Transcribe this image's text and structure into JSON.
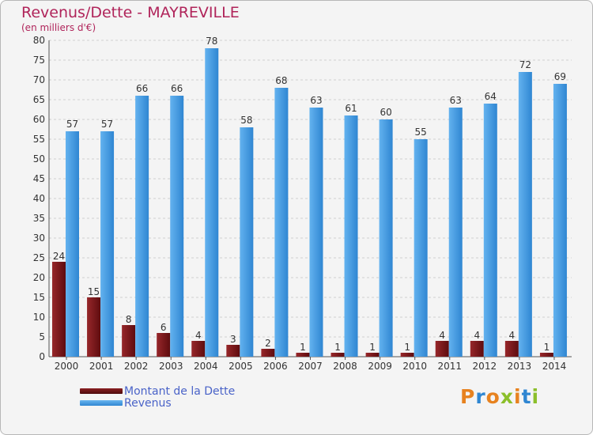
{
  "title": "Revenus/Dette - MAYREVILLE",
  "subtitle": "(en milliers d'€)",
  "logo_text": "Proxiti",
  "colors": {
    "dette": "#7a1416",
    "revenus": "#3a8fdc",
    "title": "#b0245a",
    "legend_text": "#4a63c8"
  },
  "legend": [
    {
      "label": "Montant de la Dette",
      "color": "#7a1416"
    },
    {
      "label": "Revenus",
      "color": "#3a8fdc"
    }
  ],
  "chart_data": {
    "type": "bar",
    "title": "Revenus/Dette - MAYREVILLE",
    "subtitle": "(en milliers d'€)",
    "categories": [
      "2000",
      "2001",
      "2002",
      "2003",
      "2004",
      "2005",
      "2006",
      "2007",
      "2008",
      "2009",
      "2010",
      "2011",
      "2012",
      "2013",
      "2014"
    ],
    "series": [
      {
        "name": "Montant de la Dette",
        "values": [
          24,
          15,
          8,
          6,
          4,
          3,
          2,
          1,
          1,
          1,
          1,
          4,
          4,
          4,
          1
        ]
      },
      {
        "name": "Revenus",
        "values": [
          57,
          57,
          66,
          66,
          78,
          58,
          68,
          63,
          61,
          60,
          55,
          63,
          64,
          72,
          69
        ]
      }
    ],
    "ylim": [
      0,
      80
    ],
    "yticks": [
      0,
      5,
      10,
      15,
      20,
      25,
      30,
      35,
      40,
      45,
      50,
      55,
      60,
      65,
      70,
      75,
      80
    ],
    "grid": true,
    "legend_position": "bottom-left"
  }
}
